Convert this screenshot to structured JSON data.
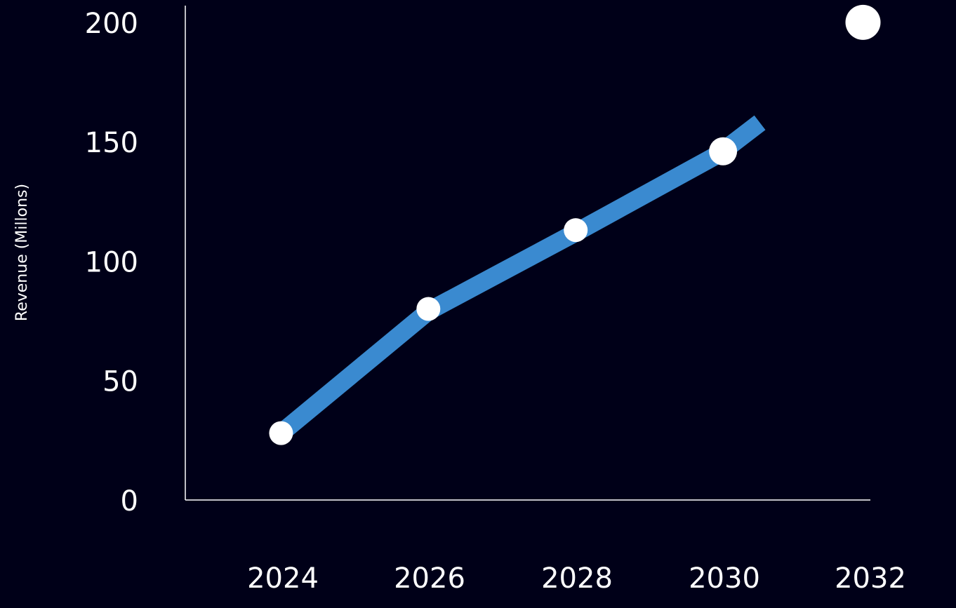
{
  "chart_data": {
    "type": "line",
    "title": "",
    "xlabel": "",
    "ylabel": "Revenue (Millons)",
    "x_ticks": [
      "2024",
      "2026",
      "2028",
      "2030",
      "2032"
    ],
    "y_ticks": [
      "0",
      "50",
      "100",
      "150",
      "200"
    ],
    "xlim": [
      2022.7,
      2032.0
    ],
    "ylim": [
      0,
      207
    ],
    "grid": false,
    "legend": "none",
    "colors": {
      "background": "#000018",
      "line": "#3a8ad0",
      "marker": "#ffffff",
      "axis": "#ffffff"
    },
    "line": {
      "x": [
        2024,
        2026,
        2028,
        2029.95,
        2030.5
      ],
      "y": [
        28,
        79,
        112,
        145,
        158
      ]
    },
    "points": {
      "x": [
        2024,
        2026,
        2028,
        2030,
        2031.9
      ],
      "y": [
        28,
        80,
        113,
        146,
        200
      ]
    }
  }
}
